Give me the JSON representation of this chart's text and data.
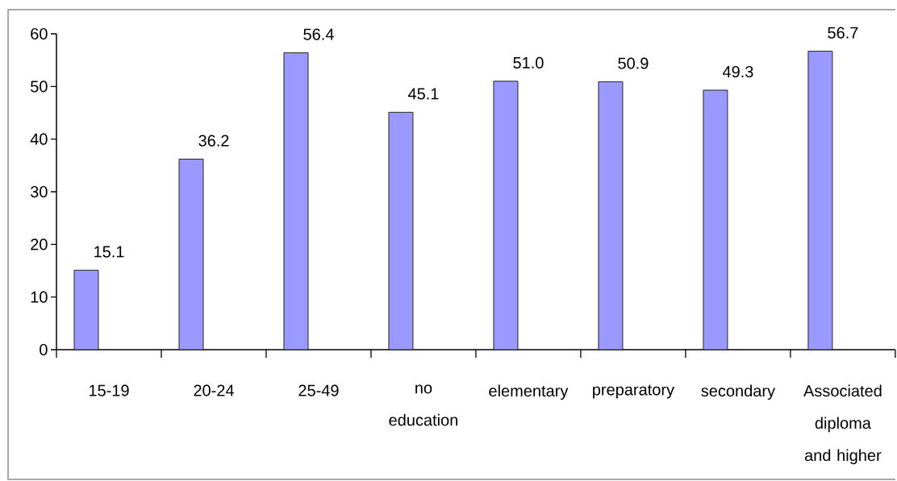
{
  "chart_data": {
    "type": "bar",
    "categories": [
      "15-19",
      "20-24",
      "25-49",
      "no education",
      "elementary",
      "preparatory",
      "secondary",
      "Associated diploma and higher"
    ],
    "values": [
      15.1,
      36.2,
      56.4,
      45.1,
      51.0,
      50.9,
      49.3,
      56.7
    ],
    "value_labels": [
      "15.1",
      "36.2",
      "56.4",
      "45.1",
      "51.0",
      "50.9",
      "49.3",
      "56.7"
    ],
    "color": "#9999ff",
    "ylim": [
      0,
      60
    ],
    "yticks": [
      0,
      10,
      20,
      30,
      40,
      50,
      60
    ]
  }
}
